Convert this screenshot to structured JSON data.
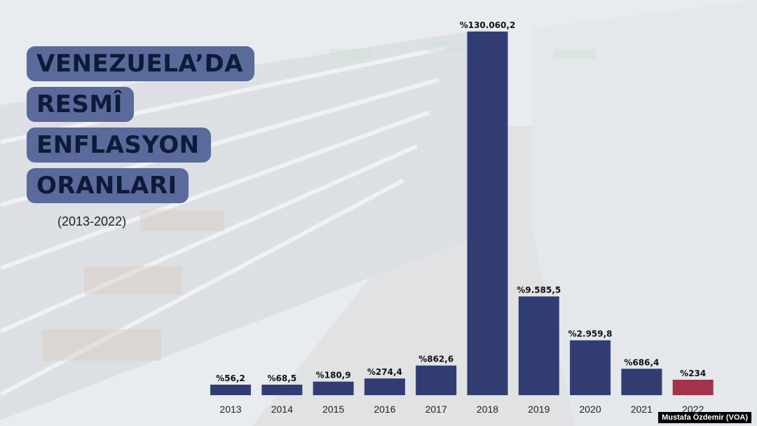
{
  "title_lines": [
    "VENEZUELA’DA",
    "RESMÎ",
    "ENFLASYON",
    "ORANLARI"
  ],
  "date_range": "(2013-2022)",
  "credit": "Mustafa Özdemir (VOA)",
  "colors": {
    "bar": "#1e2a66",
    "highlight": "#9a1f3a",
    "title_bg": "#5a6a9a"
  },
  "chart_data": {
    "type": "bar",
    "title": "VENEZUELA’DA RESMÎ ENFLASYON ORANLARI",
    "subtitle": "(2013-2022)",
    "categories": [
      "2013",
      "2014",
      "2015",
      "2016",
      "2017",
      "2018",
      "2019",
      "2020",
      "2021",
      "2022"
    ],
    "values": [
      56.2,
      68.5,
      180.9,
      274.4,
      862.6,
      130060.2,
      9585.5,
      2959.8,
      686.4,
      234
    ],
    "value_labels": [
      "%56,2",
      "%68,5",
      "%180,9",
      "%274,4",
      "%862,6",
      "%130.060,2",
      "%9.585,5",
      "%2.959,8",
      "%686,4",
      "%234"
    ],
    "highlight_index": 9,
    "scale": "nonlinear (illustrative)",
    "grid": false,
    "legend": "none"
  }
}
